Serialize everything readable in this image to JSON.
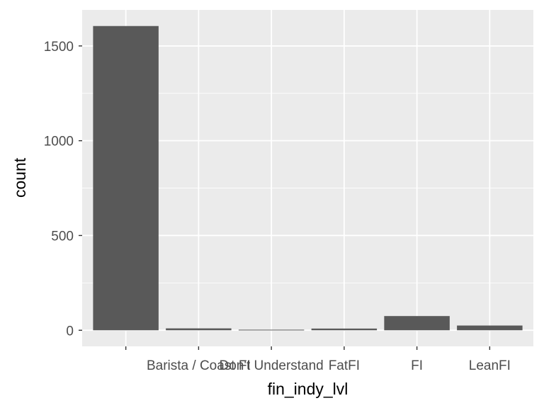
{
  "colors": {
    "panel_background": "#EBEBEB",
    "grid_major": "#FFFFFF",
    "bar_fill": "#595959",
    "tick_text": "#4D4D4D",
    "tick_mark": "#333333"
  },
  "chart_data": {
    "type": "bar",
    "categories": [
      "",
      "Barista / Coast FI",
      "Don't Understand",
      "FatFI",
      "FI",
      "LeanFI"
    ],
    "values": [
      1605,
      10,
      3,
      9,
      75,
      25
    ],
    "xlabel": "fin_indy_lvl",
    "ylabel": "count",
    "ylim": [
      -85,
      1690
    ],
    "yticks": [
      0,
      500,
      1000,
      1500
    ],
    "grid": true,
    "legend": "none"
  }
}
